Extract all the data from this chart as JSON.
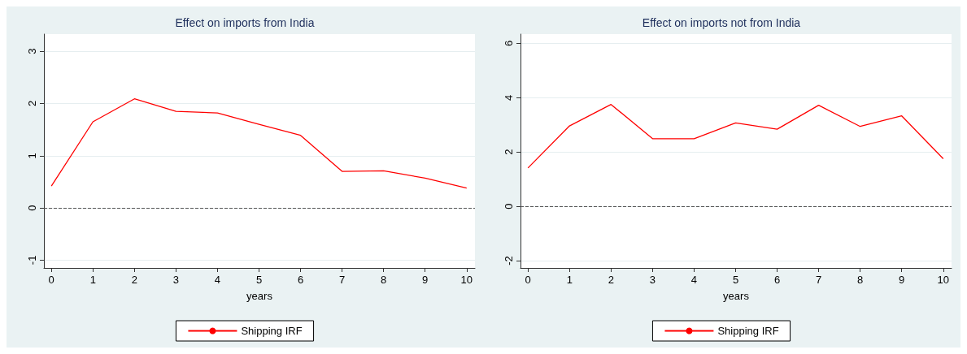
{
  "chart_data": [
    {
      "type": "line",
      "title": "Effect on imports from India",
      "xlabel": "years",
      "x": [
        0,
        1,
        2,
        3,
        4,
        5,
        6,
        7,
        8,
        9,
        10
      ],
      "series": [
        {
          "name": "Shipping IRF",
          "color": "#ff0000",
          "values": [
            0.42,
            1.65,
            2.09,
            1.85,
            1.82,
            1.6,
            1.39,
            0.7,
            0.71,
            0.57,
            0.38
          ]
        }
      ],
      "xlim": [
        -0.18,
        10.2
      ],
      "xticks": [
        0,
        1,
        2,
        3,
        4,
        5,
        6,
        7,
        8,
        9,
        10
      ],
      "ylim": [
        -1.15,
        3.33
      ],
      "yticks": [
        -1,
        0,
        1,
        2,
        3
      ],
      "ref_lines": [
        {
          "axis": "y",
          "value": 0,
          "color": "#555555",
          "line_style": "dashed"
        }
      ],
      "grid": "y",
      "legend": "bottom",
      "marker": "none"
    },
    {
      "type": "line",
      "title": "Effect on imports not from India",
      "xlabel": "years",
      "x": [
        0,
        1,
        2,
        3,
        4,
        5,
        6,
        7,
        8,
        9,
        10
      ],
      "series": [
        {
          "name": "Shipping IRF",
          "color": "#ff0000",
          "values": [
            1.41,
            2.96,
            3.75,
            2.49,
            2.49,
            3.07,
            2.84,
            3.72,
            2.94,
            3.33,
            1.75
          ]
        }
      ],
      "xlim": [
        -0.18,
        10.2
      ],
      "xticks": [
        0,
        1,
        2,
        3,
        4,
        5,
        6,
        7,
        8,
        9,
        10
      ],
      "ylim": [
        -2.27,
        6.34
      ],
      "yticks": [
        -2,
        0,
        2,
        4,
        6
      ],
      "ref_lines": [
        {
          "axis": "y",
          "value": 0,
          "color": "#555555",
          "line_style": "dashed"
        }
      ],
      "grid": "y",
      "legend": "bottom",
      "marker": "none"
    }
  ]
}
